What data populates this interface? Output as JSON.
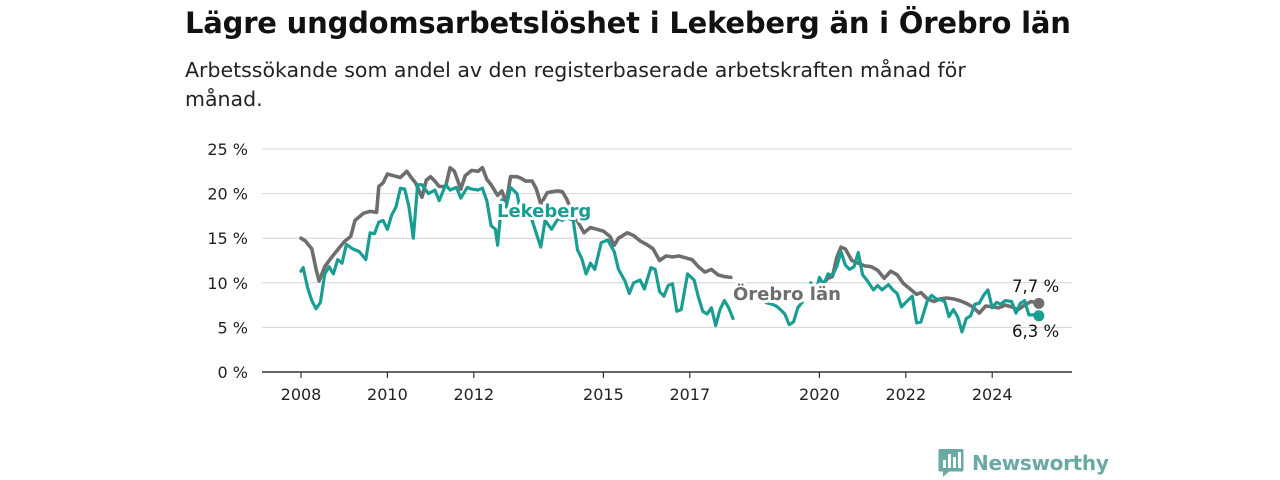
{
  "header": {
    "title": "Lägre ungdomsarbetslöshet i Lekeberg än i Örebro län",
    "subtitle": "Arbetssökande som andel av den registerbaserade arbetskraften månad för månad."
  },
  "brand": {
    "name": "Newsworthy",
    "icon": "bar-chart-speech-bubble-icon",
    "color": "#6aa9a4"
  },
  "chart_data": {
    "type": "line",
    "ylim": [
      0,
      25
    ],
    "xlim": [
      2008,
      2025
    ],
    "y_ticks": [
      {
        "value": 0,
        "label": "0 %"
      },
      {
        "value": 5,
        "label": "5 %"
      },
      {
        "value": 10,
        "label": "10 %"
      },
      {
        "value": 15,
        "label": "15 %"
      },
      {
        "value": 20,
        "label": "20 %"
      },
      {
        "value": 25,
        "label": "25 %"
      }
    ],
    "x_ticks": [
      {
        "value": 2008,
        "label": "2008"
      },
      {
        "value": 2010,
        "label": "2010"
      },
      {
        "value": 2012,
        "label": "2012"
      },
      {
        "value": 2015,
        "label": "2015"
      },
      {
        "value": 2017,
        "label": "2017"
      },
      {
        "value": 2020,
        "label": "2020"
      },
      {
        "value": 2022,
        "label": "2022"
      },
      {
        "value": 2024,
        "label": "2024"
      }
    ],
    "grid": true,
    "series": [
      {
        "name": "Örebro län",
        "color": "#6e6e6e",
        "end_label": "7,7 %",
        "points": [
          [
            2008.0,
            15.0
          ],
          [
            2008.1,
            14.7
          ],
          [
            2008.25,
            13.8
          ],
          [
            2008.35,
            11.5
          ],
          [
            2008.42,
            10.2
          ],
          [
            2008.55,
            11.8
          ],
          [
            2008.7,
            12.8
          ],
          [
            2008.85,
            13.7
          ],
          [
            2009.0,
            14.6
          ],
          [
            2009.15,
            15.2
          ],
          [
            2009.25,
            17.0
          ],
          [
            2009.45,
            17.8
          ],
          [
            2009.6,
            18.0
          ],
          [
            2009.75,
            17.9
          ],
          [
            2009.8,
            20.8
          ],
          [
            2009.9,
            21.2
          ],
          [
            2010.0,
            22.2
          ],
          [
            2010.15,
            22.0
          ],
          [
            2010.3,
            21.8
          ],
          [
            2010.45,
            22.5
          ],
          [
            2010.55,
            21.8
          ],
          [
            2010.65,
            21.2
          ],
          [
            2010.8,
            19.6
          ],
          [
            2010.9,
            21.5
          ],
          [
            2011.0,
            21.9
          ],
          [
            2011.1,
            21.4
          ],
          [
            2011.2,
            20.8
          ],
          [
            2011.35,
            20.8
          ],
          [
            2011.45,
            22.9
          ],
          [
            2011.55,
            22.5
          ],
          [
            2011.7,
            20.5
          ],
          [
            2011.8,
            22.0
          ],
          [
            2011.95,
            22.6
          ],
          [
            2012.1,
            22.5
          ],
          [
            2012.2,
            22.9
          ],
          [
            2012.3,
            21.6
          ],
          [
            2012.4,
            21.0
          ],
          [
            2012.55,
            19.8
          ],
          [
            2012.65,
            20.3
          ],
          [
            2012.75,
            18.9
          ],
          [
            2012.85,
            21.9
          ],
          [
            2013.0,
            21.9
          ],
          [
            2013.1,
            21.7
          ],
          [
            2013.2,
            21.4
          ],
          [
            2013.35,
            21.4
          ],
          [
            2013.45,
            20.5
          ],
          [
            2013.55,
            18.8
          ],
          [
            2013.7,
            20.1
          ],
          [
            2013.8,
            20.2
          ],
          [
            2013.95,
            20.3
          ],
          [
            2014.05,
            20.2
          ],
          [
            2014.15,
            19.4
          ],
          [
            2014.3,
            17.6
          ],
          [
            2014.4,
            16.9
          ],
          [
            2014.55,
            15.6
          ],
          [
            2014.7,
            16.2
          ],
          [
            2014.85,
            16.0
          ],
          [
            2015.0,
            15.8
          ],
          [
            2015.15,
            15.2
          ],
          [
            2015.25,
            14.2
          ],
          [
            2015.35,
            15.0
          ],
          [
            2015.55,
            15.6
          ],
          [
            2015.7,
            15.3
          ],
          [
            2015.85,
            14.7
          ],
          [
            2016.0,
            14.3
          ],
          [
            2016.15,
            13.8
          ],
          [
            2016.3,
            12.5
          ],
          [
            2016.45,
            13.0
          ],
          [
            2016.6,
            12.9
          ],
          [
            2016.75,
            13.0
          ],
          [
            2016.9,
            12.8
          ],
          [
            2017.05,
            12.6
          ],
          [
            2017.2,
            11.8
          ],
          [
            2017.35,
            11.2
          ],
          [
            2017.5,
            11.5
          ],
          [
            2017.65,
            10.9
          ],
          [
            2017.8,
            10.7
          ],
          [
            2017.95,
            10.6
          ]
        ],
        "points_2": [
          [
            2020.1,
            10.0
          ],
          [
            2020.2,
            10.5
          ],
          [
            2020.3,
            10.7
          ],
          [
            2020.4,
            12.8
          ],
          [
            2020.5,
            14.0
          ],
          [
            2020.6,
            13.8
          ],
          [
            2020.75,
            12.5
          ],
          [
            2020.9,
            12.2
          ],
          [
            2021.05,
            11.9
          ],
          [
            2021.2,
            11.8
          ],
          [
            2021.35,
            11.4
          ],
          [
            2021.5,
            10.5
          ],
          [
            2021.65,
            11.3
          ],
          [
            2021.8,
            10.9
          ],
          [
            2021.95,
            9.9
          ],
          [
            2022.1,
            9.3
          ],
          [
            2022.25,
            8.7
          ],
          [
            2022.35,
            8.9
          ],
          [
            2022.5,
            8.2
          ],
          [
            2022.65,
            7.9
          ],
          [
            2022.8,
            8.2
          ],
          [
            2022.95,
            8.3
          ],
          [
            2023.1,
            8.2
          ],
          [
            2023.25,
            8.0
          ],
          [
            2023.4,
            7.7
          ],
          [
            2023.55,
            7.3
          ],
          [
            2023.7,
            6.6
          ],
          [
            2023.85,
            7.4
          ],
          [
            2024.0,
            7.3
          ],
          [
            2024.15,
            7.2
          ],
          [
            2024.3,
            7.5
          ],
          [
            2024.45,
            7.3
          ],
          [
            2024.6,
            7.0
          ],
          [
            2024.75,
            7.5
          ],
          [
            2024.9,
            7.9
          ],
          [
            2025.0,
            7.8
          ],
          [
            2025.08,
            7.7
          ]
        ]
      },
      {
        "name": "Lekeberg",
        "color": "#1a9e94",
        "end_label": "6,3 %",
        "points": [
          [
            2008.0,
            11.3
          ],
          [
            2008.05,
            11.7
          ],
          [
            2008.15,
            9.5
          ],
          [
            2008.25,
            8.0
          ],
          [
            2008.35,
            7.1
          ],
          [
            2008.45,
            7.8
          ],
          [
            2008.55,
            11.0
          ],
          [
            2008.65,
            11.8
          ],
          [
            2008.75,
            11.0
          ],
          [
            2008.85,
            12.6
          ],
          [
            2008.95,
            12.2
          ],
          [
            2009.05,
            14.3
          ],
          [
            2009.2,
            13.8
          ],
          [
            2009.35,
            13.5
          ],
          [
            2009.5,
            12.6
          ],
          [
            2009.6,
            15.6
          ],
          [
            2009.7,
            15.5
          ],
          [
            2009.8,
            16.8
          ],
          [
            2009.9,
            17.0
          ],
          [
            2010.0,
            16.0
          ],
          [
            2010.1,
            17.6
          ],
          [
            2010.2,
            18.5
          ],
          [
            2010.3,
            20.6
          ],
          [
            2010.4,
            20.5
          ],
          [
            2010.5,
            18.5
          ],
          [
            2010.6,
            15.0
          ],
          [
            2010.7,
            21.0
          ],
          [
            2010.8,
            21.0
          ],
          [
            2010.95,
            20.0
          ],
          [
            2011.1,
            20.4
          ],
          [
            2011.2,
            19.2
          ],
          [
            2011.35,
            21.0
          ],
          [
            2011.45,
            20.4
          ],
          [
            2011.6,
            20.7
          ],
          [
            2011.7,
            19.5
          ],
          [
            2011.85,
            20.7
          ],
          [
            2011.95,
            20.5
          ],
          [
            2012.1,
            20.4
          ],
          [
            2012.2,
            20.6
          ],
          [
            2012.3,
            19.2
          ],
          [
            2012.4,
            16.4
          ],
          [
            2012.5,
            16.0
          ],
          [
            2012.55,
            14.2
          ],
          [
            2012.65,
            19.3
          ],
          [
            2012.75,
            18.5
          ],
          [
            2012.85,
            20.7
          ],
          [
            2013.0,
            20.0
          ],
          [
            2013.1,
            17.5
          ],
          [
            2013.25,
            18.2
          ],
          [
            2013.35,
            17.0
          ],
          [
            2013.45,
            15.5
          ],
          [
            2013.55,
            14.0
          ],
          [
            2013.65,
            17.0
          ],
          [
            2013.8,
            16.0
          ],
          [
            2013.95,
            17.2
          ],
          [
            2014.05,
            17.0
          ],
          [
            2014.15,
            17.3
          ],
          [
            2014.3,
            17.0
          ],
          [
            2014.4,
            13.7
          ],
          [
            2014.5,
            12.7
          ],
          [
            2014.6,
            11.0
          ],
          [
            2014.7,
            12.2
          ],
          [
            2014.8,
            11.5
          ],
          [
            2014.95,
            14.5
          ],
          [
            2015.1,
            14.8
          ],
          [
            2015.25,
            13.5
          ],
          [
            2015.35,
            11.5
          ],
          [
            2015.5,
            10.2
          ],
          [
            2015.6,
            8.8
          ],
          [
            2015.7,
            10.0
          ],
          [
            2015.85,
            10.3
          ],
          [
            2015.95,
            9.3
          ],
          [
            2016.1,
            11.7
          ],
          [
            2016.2,
            11.5
          ],
          [
            2016.3,
            9.0
          ],
          [
            2016.4,
            8.5
          ],
          [
            2016.5,
            9.7
          ],
          [
            2016.6,
            9.9
          ],
          [
            2016.7,
            6.8
          ],
          [
            2016.8,
            7.0
          ],
          [
            2016.95,
            11.0
          ],
          [
            2017.1,
            10.3
          ],
          [
            2017.2,
            8.4
          ],
          [
            2017.3,
            6.8
          ],
          [
            2017.4,
            6.5
          ],
          [
            2017.5,
            7.2
          ],
          [
            2017.6,
            5.2
          ],
          [
            2017.7,
            7.0
          ],
          [
            2017.8,
            8.0
          ],
          [
            2017.9,
            7.2
          ],
          [
            2018.0,
            6.0
          ]
        ],
        "points_2": [
          [
            2019.8,
            10.0
          ],
          [
            2019.9,
            8.5
          ],
          [
            2020.0,
            10.6
          ],
          [
            2020.1,
            9.8
          ],
          [
            2020.2,
            11.0
          ],
          [
            2020.3,
            10.8
          ],
          [
            2020.4,
            11.8
          ],
          [
            2020.5,
            13.5
          ],
          [
            2020.6,
            12.0
          ],
          [
            2020.7,
            11.5
          ],
          [
            2020.8,
            11.8
          ],
          [
            2020.9,
            13.4
          ],
          [
            2021.0,
            10.9
          ],
          [
            2021.1,
            10.3
          ],
          [
            2021.25,
            9.2
          ],
          [
            2021.35,
            9.7
          ],
          [
            2021.45,
            9.2
          ],
          [
            2021.6,
            9.8
          ],
          [
            2021.7,
            9.2
          ],
          [
            2021.8,
            8.8
          ],
          [
            2021.9,
            7.3
          ],
          [
            2022.0,
            7.8
          ],
          [
            2022.15,
            8.5
          ],
          [
            2022.25,
            5.5
          ],
          [
            2022.35,
            5.6
          ],
          [
            2022.5,
            8.0
          ],
          [
            2022.6,
            8.6
          ],
          [
            2022.7,
            8.2
          ],
          [
            2022.8,
            8.1
          ],
          [
            2022.9,
            7.9
          ],
          [
            2023.0,
            6.2
          ],
          [
            2023.1,
            7.0
          ],
          [
            2023.2,
            6.2
          ],
          [
            2023.3,
            4.5
          ],
          [
            2023.4,
            6.0
          ],
          [
            2023.5,
            6.3
          ],
          [
            2023.6,
            7.6
          ],
          [
            2023.7,
            7.7
          ],
          [
            2023.8,
            8.6
          ],
          [
            2023.9,
            9.2
          ],
          [
            2024.0,
            7.2
          ],
          [
            2024.1,
            7.8
          ],
          [
            2024.2,
            7.6
          ],
          [
            2024.3,
            8.0
          ],
          [
            2024.45,
            7.9
          ],
          [
            2024.55,
            6.6
          ],
          [
            2024.65,
            7.7
          ],
          [
            2024.75,
            8.0
          ],
          [
            2024.85,
            6.4
          ],
          [
            2024.95,
            6.4
          ],
          [
            2025.05,
            6.5
          ],
          [
            2025.08,
            6.3
          ]
        ],
        "points_mid": [
          [
            2018.75,
            7.8
          ],
          [
            2018.9,
            7.6
          ],
          [
            2019.0,
            7.4
          ],
          [
            2019.1,
            7.0
          ],
          [
            2019.2,
            6.5
          ],
          [
            2019.3,
            5.3
          ],
          [
            2019.4,
            5.6
          ],
          [
            2019.5,
            7.2
          ],
          [
            2019.6,
            7.8
          ]
        ]
      }
    ]
  }
}
